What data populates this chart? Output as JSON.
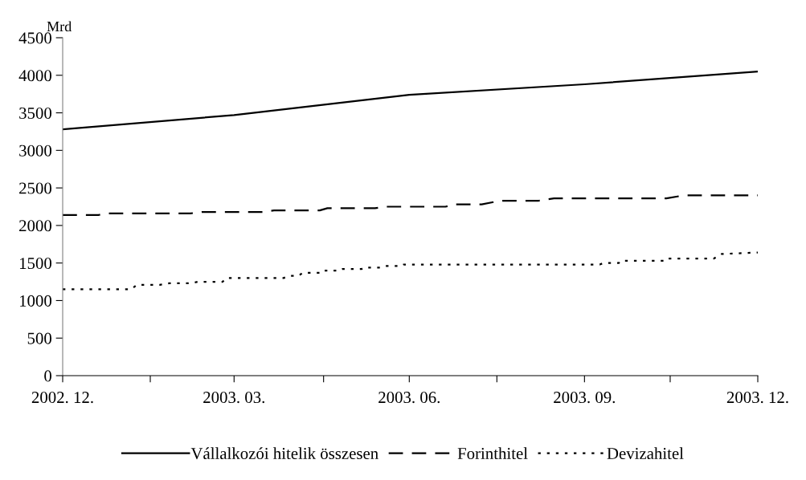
{
  "chart_data": {
    "type": "line",
    "ylabel": "Mrd",
    "xlim": [
      "2002-12-01",
      "2003-12-01"
    ],
    "xticks": [
      {
        "value": "2002-12-01",
        "label": "2002. 12."
      },
      {
        "value": "2003-01-16",
        "label": null
      },
      {
        "value": "2003-03-01",
        "label": "2003. 03."
      },
      {
        "value": "2003-04-17",
        "label": null
      },
      {
        "value": "2003-06-01",
        "label": "2003. 06."
      },
      {
        "value": "2003-07-17",
        "label": null
      },
      {
        "value": "2003-09-01",
        "label": "2003. 09."
      },
      {
        "value": "2003-10-16",
        "label": null
      },
      {
        "value": "2003-12-01",
        "label": "2003. 12."
      }
    ],
    "ylim": [
      0,
      4500
    ],
    "yticks": [
      0,
      500,
      1000,
      1500,
      2000,
      2500,
      3000,
      3500,
      4000,
      4500
    ],
    "grid": false,
    "legend": "bottom",
    "marker": "none",
    "series": [
      {
        "name": "Vállalkozói hitelik összesen",
        "color": "#000000",
        "line_style": "solid",
        "x": [
          "2002-12-01",
          "2003-03-01",
          "2003-06-01",
          "2003-09-01",
          "2003-12-01"
        ],
        "values": [
          3280,
          3470,
          3740,
          3880,
          4050
        ]
      },
      {
        "name": "Forinthitel",
        "color": "#000000",
        "line_style": "dashed",
        "x": [
          "2002-12-01",
          "2002-12-20",
          "2002-12-23",
          "2003-02-06",
          "2003-02-12",
          "2003-03-16",
          "2003-03-22",
          "2003-04-15",
          "2003-04-19",
          "2003-05-14",
          "2003-05-19",
          "2003-06-20",
          "2003-06-25",
          "2003-07-09",
          "2003-07-19",
          "2003-08-08",
          "2003-08-16",
          "2003-10-14",
          "2003-10-23",
          "2003-12-01"
        ],
        "values": [
          2140,
          2140,
          2160,
          2160,
          2180,
          2180,
          2200,
          2200,
          2230,
          2230,
          2250,
          2250,
          2280,
          2280,
          2330,
          2330,
          2360,
          2360,
          2400,
          2400
        ]
      },
      {
        "name": "Devizahitel",
        "color": "#000000",
        "line_style": "dotted",
        "x": [
          "2002-12-01",
          "2003-01-06",
          "2003-01-09",
          "2003-01-21",
          "2003-01-26",
          "2003-02-06",
          "2003-02-10",
          "2003-02-23",
          "2003-02-25",
          "2003-03-27",
          "2003-03-30",
          "2003-04-04",
          "2003-04-06",
          "2003-04-16",
          "2003-04-17",
          "2003-04-26",
          "2003-04-27",
          "2003-05-07",
          "2003-05-08",
          "2003-05-17",
          "2003-05-19",
          "2003-05-28",
          "2003-05-29",
          "2003-09-09",
          "2003-09-11",
          "2003-09-19",
          "2003-09-20",
          "2003-10-14",
          "2003-10-15",
          "2003-11-08",
          "2003-11-12",
          "2003-12-01"
        ],
        "values": [
          1150,
          1150,
          1210,
          1210,
          1230,
          1230,
          1250,
          1250,
          1300,
          1300,
          1330,
          1330,
          1370,
          1370,
          1400,
          1400,
          1420,
          1420,
          1440,
          1440,
          1460,
          1460,
          1480,
          1480,
          1500,
          1500,
          1530,
          1530,
          1560,
          1560,
          1620,
          1640
        ]
      }
    ]
  }
}
